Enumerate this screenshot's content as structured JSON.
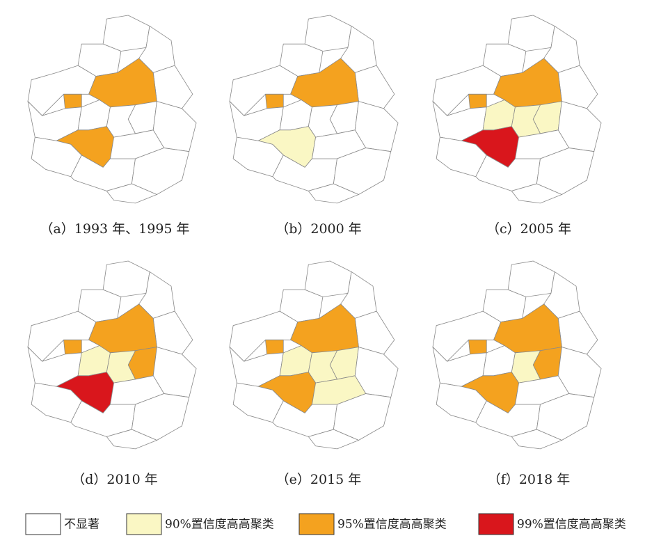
{
  "panels": [
    {
      "caption": "（a）1993 年、1995 年"
    },
    {
      "caption": "（b）2000 年"
    },
    {
      "caption": "（c）2005 年"
    },
    {
      "caption": "（d）2010 年"
    },
    {
      "caption": "（e）2015 年"
    },
    {
      "caption": "（f）2018 年"
    }
  ],
  "legend": [
    {
      "label": "不显著",
      "color": "#ffffff"
    },
    {
      "label": "90%置信度高高聚类",
      "color": "#faf7c4"
    },
    {
      "label": "95%置信度高高聚类",
      "color": "#f4a21f"
    },
    {
      "label": "99%置信度高高聚类",
      "color": "#d9161c"
    }
  ]
}
